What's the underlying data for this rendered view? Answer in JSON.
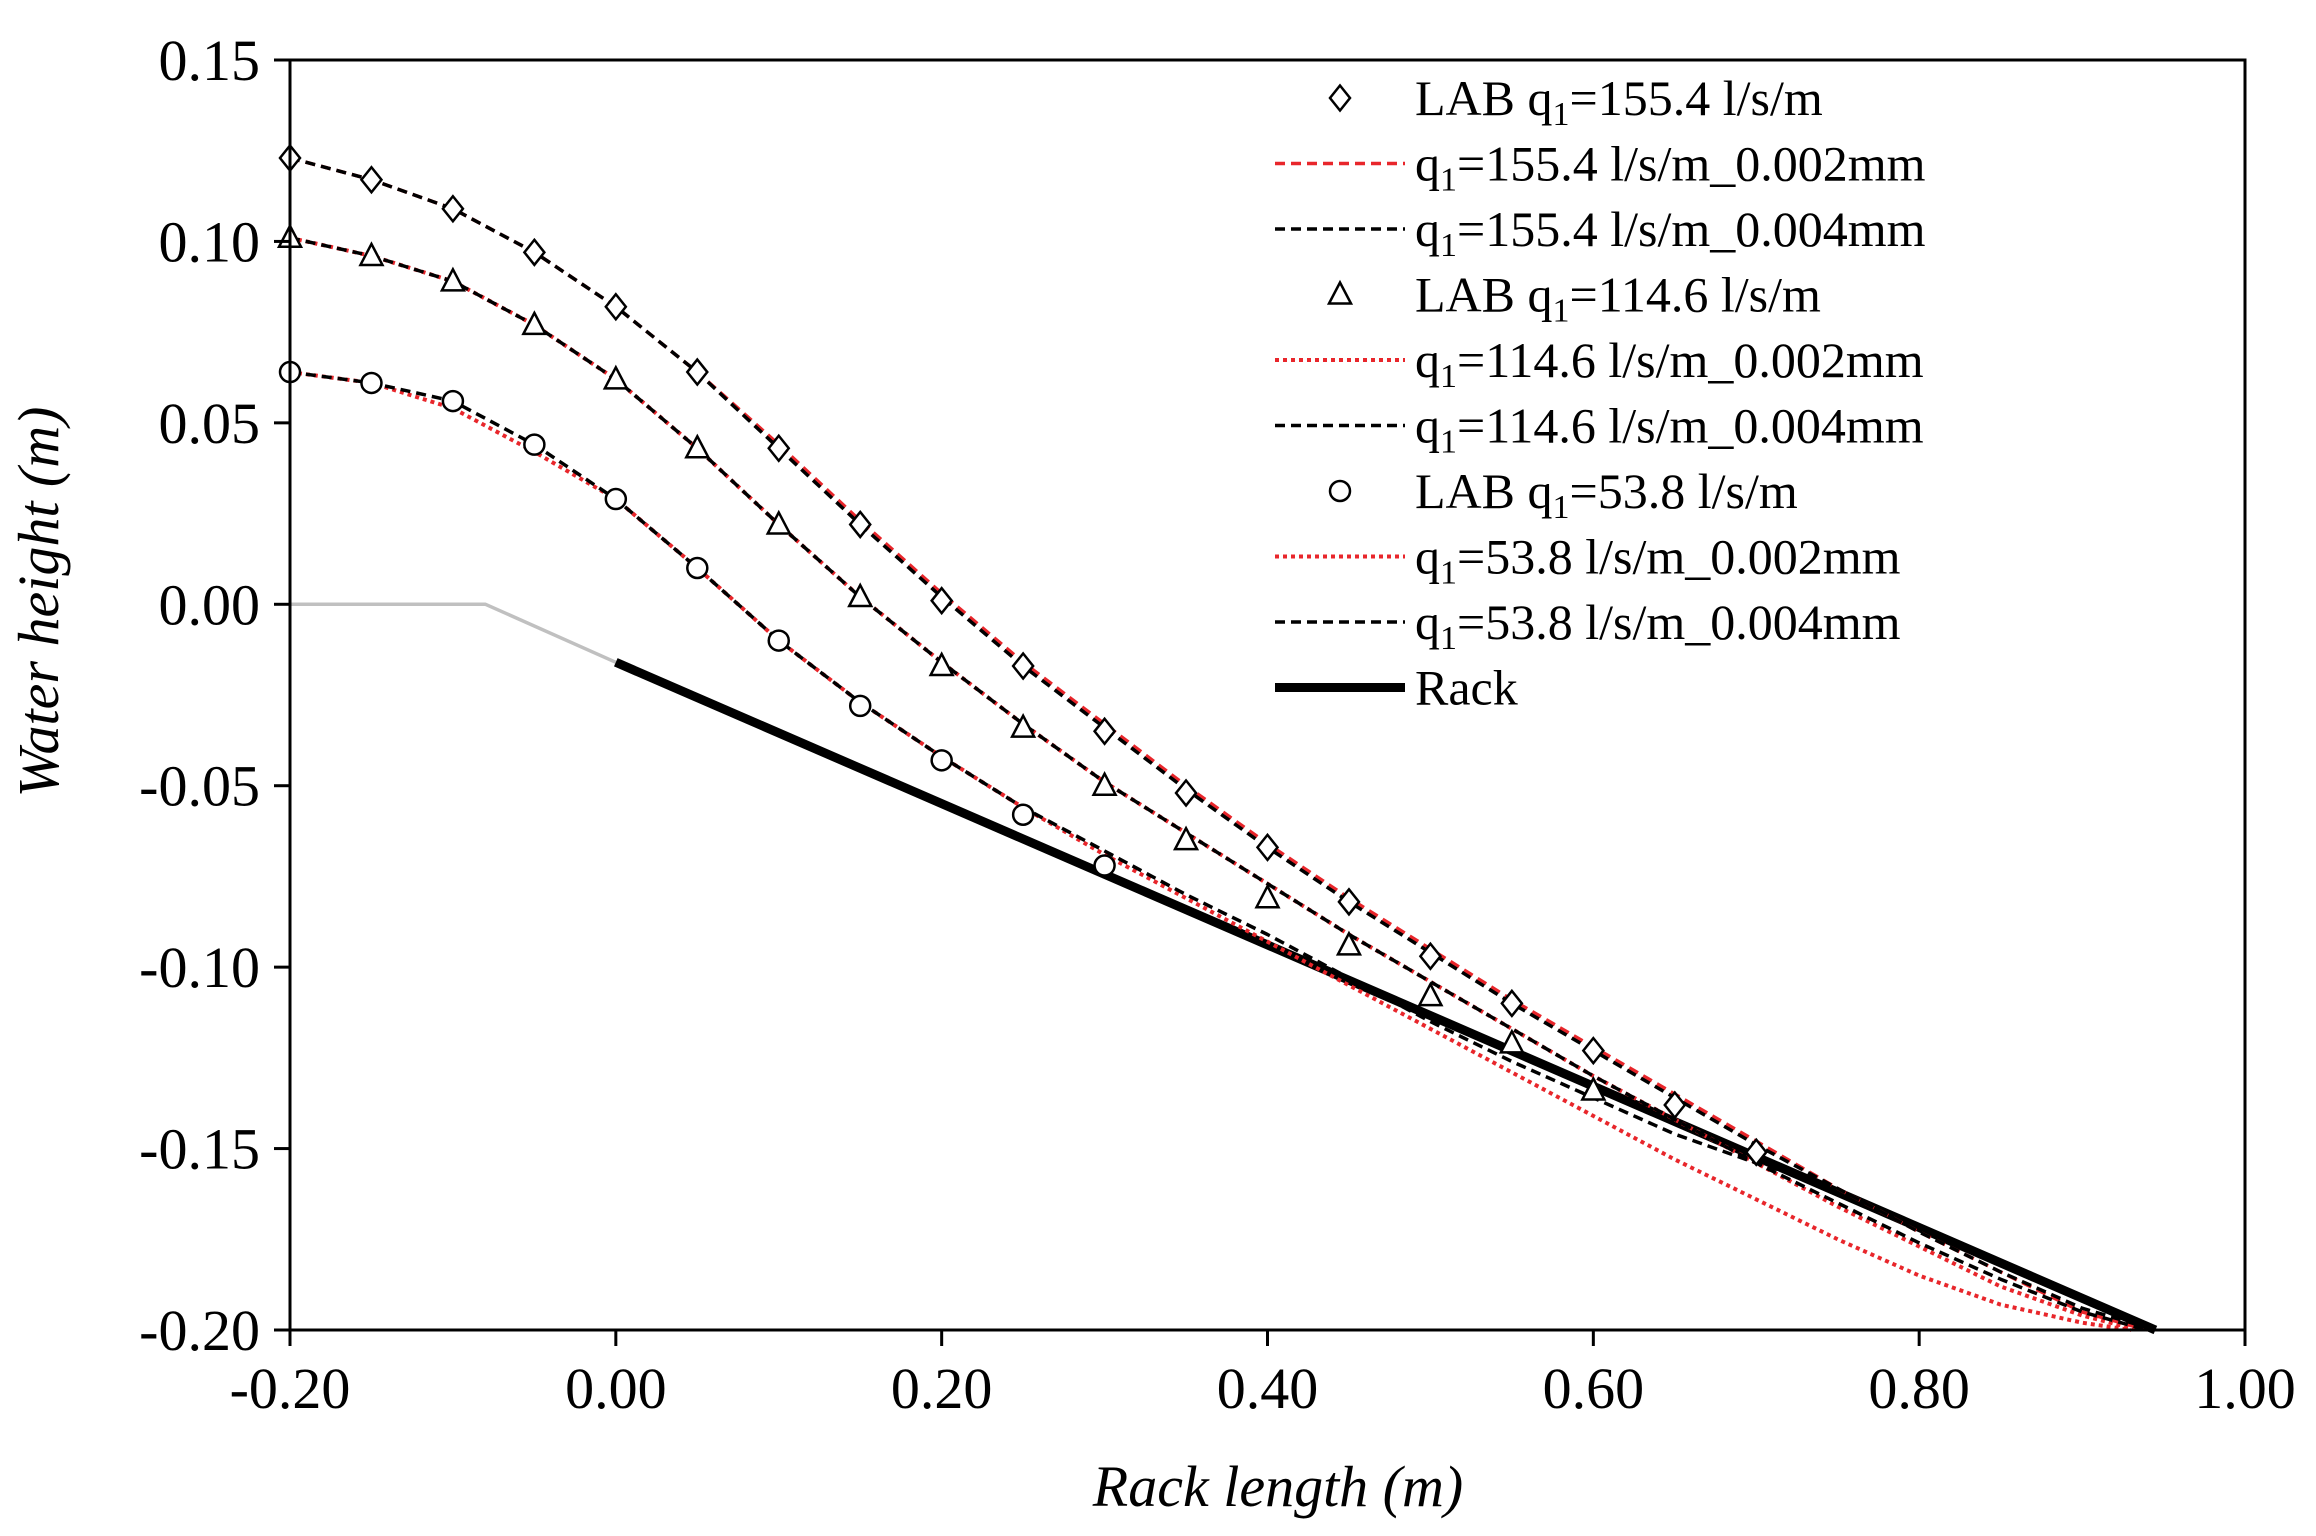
{
  "chart_data": {
    "type": "line",
    "title": "",
    "xlabel": "Rack length (m)",
    "ylabel": "Water height (m)",
    "xlim": [
      -0.2,
      1.0
    ],
    "ylim": [
      -0.2,
      0.15
    ],
    "xticks": [
      -0.2,
      0.0,
      0.2,
      0.4,
      0.6,
      0.8,
      1.0
    ],
    "xtick_labels": [
      "-0.20",
      "0.00",
      "0.20",
      "0.40",
      "0.60",
      "0.80",
      "1.00"
    ],
    "yticks": [
      0.15,
      0.1,
      0.05,
      0.0,
      -0.05,
      -0.1,
      -0.15,
      -0.2
    ],
    "ytick_labels": [
      "0.15",
      "0.10",
      "0.05",
      "0.00",
      "-0.05",
      "-0.10",
      "-0.15",
      "-0.20"
    ],
    "legend_position": "top-right",
    "colors": {
      "lab": "#000000",
      "sim_002": "#e8262b",
      "sim_004": "#000000",
      "rack": "#000000",
      "approach": "#c0c0c0"
    },
    "series": [
      {
        "key": "lab155",
        "kind": "markers",
        "marker": "diamond",
        "name_prefix": "LAB q",
        "name_sub": "1",
        "name_suffix": "=155.4 l/s/m",
        "x": [
          -0.2,
          -0.15,
          -0.1,
          -0.05,
          0.0,
          0.05,
          0.1,
          0.15,
          0.2,
          0.25,
          0.3,
          0.35,
          0.4,
          0.45,
          0.5,
          0.55,
          0.6,
          0.65,
          0.7
        ],
        "y": [
          0.123,
          0.117,
          0.109,
          0.097,
          0.082,
          0.064,
          0.043,
          0.022,
          0.001,
          -0.017,
          -0.035,
          -0.052,
          -0.067,
          -0.082,
          -0.097,
          -0.11,
          -0.123,
          -0.138,
          -0.151
        ]
      },
      {
        "key": "sim155a",
        "kind": "line",
        "style": "dashed",
        "color": "#e8262b",
        "name_prefix": "q",
        "name_sub": "1",
        "name_suffix": "=155.4 l/s/m_0.002mm",
        "x": [
          -0.2,
          -0.15,
          -0.1,
          -0.05,
          0.0,
          0.05,
          0.1,
          0.15,
          0.2,
          0.25,
          0.3,
          0.35,
          0.4,
          0.45,
          0.5,
          0.55,
          0.6,
          0.65,
          0.7,
          0.75,
          0.8,
          0.85,
          0.9,
          0.94
        ],
        "y": [
          0.123,
          0.117,
          0.109,
          0.097,
          0.082,
          0.064,
          0.044,
          0.023,
          0.003,
          -0.016,
          -0.033,
          -0.05,
          -0.066,
          -0.081,
          -0.095,
          -0.109,
          -0.122,
          -0.135,
          -0.148,
          -0.161,
          -0.173,
          -0.184,
          -0.195,
          -0.2
        ]
      },
      {
        "key": "sim155b",
        "kind": "line",
        "style": "dashed",
        "color": "#000000",
        "name_prefix": "q",
        "name_sub": "1",
        "name_suffix": "=155.4 l/s/m_0.004mm",
        "x": [
          -0.2,
          -0.15,
          -0.1,
          -0.05,
          0.0,
          0.05,
          0.1,
          0.15,
          0.2,
          0.25,
          0.3,
          0.35,
          0.4,
          0.45,
          0.5,
          0.55,
          0.6,
          0.65,
          0.7,
          0.75,
          0.8,
          0.85,
          0.9,
          0.945
        ],
        "y": [
          0.123,
          0.117,
          0.109,
          0.097,
          0.082,
          0.064,
          0.043,
          0.022,
          0.002,
          -0.017,
          -0.034,
          -0.051,
          -0.067,
          -0.082,
          -0.096,
          -0.11,
          -0.123,
          -0.136,
          -0.149,
          -0.161,
          -0.173,
          -0.184,
          -0.194,
          -0.2
        ]
      },
      {
        "key": "lab114",
        "kind": "markers",
        "marker": "triangle",
        "name_prefix": "LAB q",
        "name_sub": "1",
        "name_suffix": "=114.6 l/s/m",
        "x": [
          -0.2,
          -0.15,
          -0.1,
          -0.05,
          0.0,
          0.05,
          0.1,
          0.15,
          0.2,
          0.25,
          0.3,
          0.35,
          0.4,
          0.45,
          0.5,
          0.55,
          0.6
        ],
        "y": [
          0.101,
          0.096,
          0.089,
          0.077,
          0.062,
          0.043,
          0.022,
          0.002,
          -0.017,
          -0.034,
          -0.05,
          -0.065,
          -0.081,
          -0.094,
          -0.108,
          -0.121,
          -0.134
        ]
      },
      {
        "key": "sim114a",
        "kind": "line",
        "style": "dotted",
        "color": "#e8262b",
        "name_prefix": "q",
        "name_sub": "1",
        "name_suffix": "=114.6 l/s/m_0.002mm",
        "x": [
          -0.2,
          -0.15,
          -0.1,
          -0.05,
          0.0,
          0.05,
          0.1,
          0.15,
          0.2,
          0.25,
          0.3,
          0.35,
          0.4,
          0.45,
          0.5,
          0.55,
          0.6,
          0.65,
          0.7,
          0.75,
          0.8,
          0.85,
          0.9,
          0.935
        ],
        "y": [
          0.101,
          0.096,
          0.089,
          0.077,
          0.062,
          0.043,
          0.022,
          0.002,
          -0.016,
          -0.033,
          -0.049,
          -0.063,
          -0.077,
          -0.091,
          -0.104,
          -0.117,
          -0.13,
          -0.142,
          -0.154,
          -0.166,
          -0.177,
          -0.188,
          -0.196,
          -0.2
        ]
      },
      {
        "key": "sim114b",
        "kind": "line",
        "style": "dashed",
        "color": "#000000",
        "name_prefix": "q",
        "name_sub": "1",
        "name_suffix": "=114.6 l/s/m_0.004mm",
        "x": [
          -0.2,
          -0.15,
          -0.1,
          -0.05,
          0.0,
          0.05,
          0.1,
          0.15,
          0.2,
          0.25,
          0.3,
          0.35,
          0.4,
          0.45,
          0.5,
          0.55,
          0.6,
          0.65,
          0.7,
          0.75,
          0.8,
          0.85,
          0.9,
          0.94
        ],
        "y": [
          0.101,
          0.096,
          0.089,
          0.077,
          0.062,
          0.043,
          0.022,
          0.002,
          -0.016,
          -0.033,
          -0.049,
          -0.063,
          -0.077,
          -0.091,
          -0.104,
          -0.117,
          -0.13,
          -0.142,
          -0.154,
          -0.165,
          -0.176,
          -0.186,
          -0.195,
          -0.2
        ]
      },
      {
        "key": "lab53",
        "kind": "markers",
        "marker": "circle",
        "name_prefix": "LAB q",
        "name_sub": "1",
        "name_suffix": "=53.8 l/s/m",
        "x": [
          -0.2,
          -0.15,
          -0.1,
          -0.05,
          0.0,
          0.05,
          0.1,
          0.15,
          0.2,
          0.25,
          0.3
        ],
        "y": [
          0.064,
          0.061,
          0.056,
          0.044,
          0.029,
          0.01,
          -0.01,
          -0.028,
          -0.043,
          -0.058,
          -0.072
        ]
      },
      {
        "key": "sim53a",
        "kind": "line",
        "style": "dotted",
        "color": "#e8262b",
        "name_prefix": "q",
        "name_sub": "1",
        "name_suffix": "=53.8 l/s/m_0.002mm",
        "x": [
          -0.2,
          -0.15,
          -0.1,
          -0.05,
          0.0,
          0.05,
          0.1,
          0.15,
          0.2,
          0.25,
          0.3,
          0.35,
          0.4,
          0.45,
          0.5,
          0.55,
          0.6,
          0.65,
          0.7,
          0.75,
          0.8,
          0.85,
          0.9,
          0.93
        ],
        "y": [
          0.064,
          0.061,
          0.054,
          0.042,
          0.029,
          0.01,
          -0.01,
          -0.027,
          -0.042,
          -0.056,
          -0.069,
          -0.081,
          -0.093,
          -0.105,
          -0.117,
          -0.129,
          -0.141,
          -0.153,
          -0.164,
          -0.175,
          -0.185,
          -0.193,
          -0.198,
          -0.2
        ]
      },
      {
        "key": "sim53b",
        "kind": "line",
        "style": "dashed",
        "color": "#000000",
        "name_prefix": "q",
        "name_sub": "1",
        "name_suffix": "=53.8 l/s/m_0.004mm",
        "x": [
          -0.2,
          -0.15,
          -0.1,
          -0.05,
          0.0,
          0.05,
          0.1,
          0.15,
          0.2,
          0.25,
          0.3,
          0.35,
          0.4,
          0.45,
          0.5,
          0.55,
          0.6,
          0.65,
          0.7,
          0.73
        ],
        "y": [
          0.064,
          0.061,
          0.056,
          0.044,
          0.029,
          0.01,
          -0.01,
          -0.027,
          -0.042,
          -0.056,
          -0.068,
          -0.08,
          -0.091,
          -0.103,
          -0.115,
          -0.126,
          -0.136,
          -0.146,
          -0.154,
          -0.158
        ]
      },
      {
        "key": "rack",
        "kind": "line",
        "style": "solid-thick",
        "color": "#000000",
        "name_prefix": "Rack",
        "name_sub": "",
        "name_suffix": "",
        "x": [
          0.0,
          0.945
        ],
        "y": [
          -0.016,
          -0.2
        ]
      },
      {
        "key": "approach",
        "kind": "line",
        "style": "solid-thin",
        "color": "#c0c0c0",
        "in_legend": false,
        "name_prefix": "",
        "name_sub": "",
        "name_suffix": "",
        "x": [
          -0.2,
          -0.08,
          0.0
        ],
        "y": [
          0.0,
          0.0,
          -0.016
        ]
      }
    ]
  }
}
